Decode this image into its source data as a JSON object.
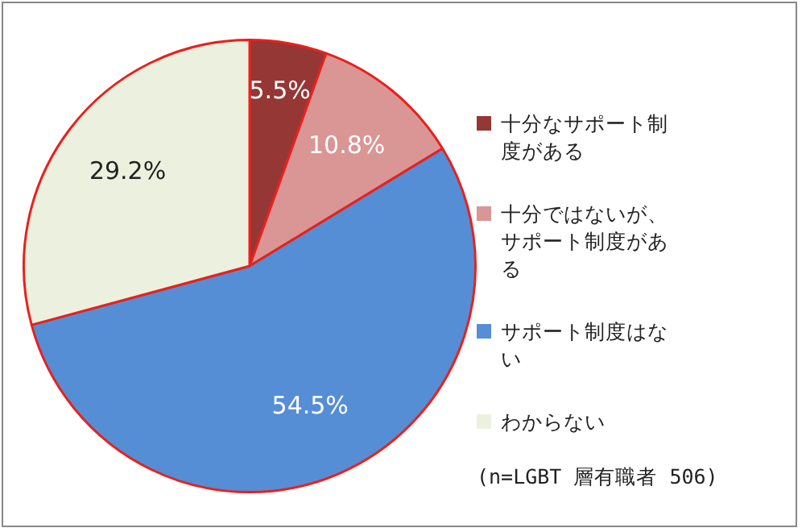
{
  "chart_data": {
    "type": "pie",
    "categories": [
      "十分なサポート制度がある",
      "十分ではないが、サポート制度がある",
      "サポート制度はない",
      "わからない"
    ],
    "values": [
      5.5,
      10.8,
      54.5,
      29.2
    ],
    "colors": [
      "#953735",
      "#d99694",
      "#558ed5",
      "#ebf1de"
    ],
    "value_labels": [
      "5.5%",
      "10.8%",
      "54.5%",
      "29.2%"
    ],
    "legend": "right",
    "annotations": [
      "(n=LGBT 層有職者 506)"
    ]
  }
}
